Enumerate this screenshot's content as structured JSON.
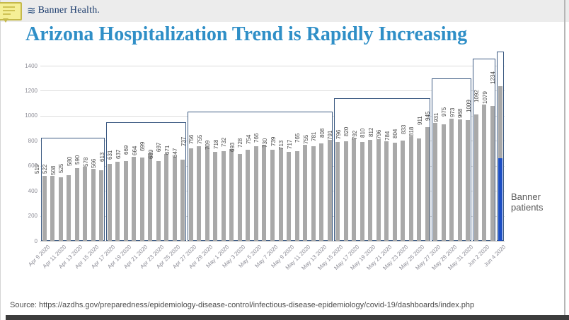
{
  "header": {
    "logo_text": "Banner Health.",
    "comment_icon": "sticky-note-comment-icon",
    "logo_swirl_icon": "banner-swirl-icon"
  },
  "title": "Arizona Hospitalization Trend is Rapidly Increasing",
  "annotation": {
    "line1": "Banner",
    "line2": "patients"
  },
  "source": "Source:  https://azdhs.gov/preparedness/epidemiology-disease-control/infectious-disease-epidemiology/covid-19/dashboards/index.php",
  "colors": {
    "bar": "#a9a9a9",
    "banner_patients_blue": "#1d4fc4",
    "step_box_border": "#3c5a82",
    "title_blue": "#2f8fc7",
    "logo_navy": "#1c3c6d",
    "gridline": "#dcdcdc",
    "tick_text": "#8c8c96",
    "header_band": "#ececec"
  },
  "chart_data": {
    "type": "bar",
    "title": "Arizona Hospitalization Trend is Rapidly Increasing",
    "xlabel": "",
    "ylabel": "",
    "ylim": [
      0,
      1400
    ],
    "yticks": [
      0,
      200,
      400,
      600,
      800,
      1000,
      1200,
      1400
    ],
    "grid": true,
    "xtick_every": 2,
    "x": [
      "Apr 9 2020",
      "Apr 10 2020",
      "Apr 11 2020",
      "Apr 12 2020",
      "Apr 13 2020",
      "Apr 14 2020",
      "Apr 15 2020",
      "Apr 16 2020",
      "Apr 17 2020",
      "Apr 18 2020",
      "Apr 19 2020",
      "Apr 20 2020",
      "Apr 21 2020",
      "Apr 22 2020",
      "Apr 23 2020",
      "Apr 24 2020",
      "Apr 25 2020",
      "Apr 26 2020",
      "Apr 27 2020",
      "Apr 28 2020",
      "Apr 29 2020",
      "Apr 30 2020",
      "May 1 2020",
      "May 2 2020",
      "May 3 2020",
      "May 4 2020",
      "May 5 2020",
      "May 6 2020",
      "May 7 2020",
      "May 8 2020",
      "May 9 2020",
      "May 10 2020",
      "May 11 2020",
      "May 12 2020",
      "May 13 2020",
      "May 14 2020",
      "May 15 2020",
      "May 16 2020",
      "May 17 2020",
      "May 18 2020",
      "May 19 2020",
      "May 20 2020",
      "May 21 2020",
      "May 22 2020",
      "May 23 2020",
      "May 24 2020",
      "May 25 2020",
      "May 26 2020",
      "May 27 2020",
      "May 28 2020",
      "May 29 2020",
      "May 30 2020",
      "May 31 2020",
      "Jun 1 2020",
      "Jun 2 2020",
      "Jun 3 2020",
      "Jun 4 2020"
    ],
    "values": [
      519,
      522,
      508,
      525,
      580,
      590,
      578,
      566,
      613,
      631,
      637,
      669,
      664,
      699,
      639,
      697,
      671,
      647,
      737,
      756,
      755,
      709,
      718,
      732,
      693,
      728,
      754,
      766,
      730,
      739,
      713,
      717,
      765,
      755,
      781,
      808,
      791,
      796,
      820,
      792,
      810,
      812,
      796,
      784,
      804,
      833,
      818,
      911,
      945,
      931,
      975,
      973,
      968,
      1009,
      1092,
      1079,
      1234
    ],
    "step_boxes": [
      {
        "start_index": 0,
        "end_index": 7,
        "top_value": 825
      },
      {
        "start_index": 8,
        "end_index": 17,
        "top_value": 950
      },
      {
        "start_index": 18,
        "end_index": 35,
        "top_value": 1035
      },
      {
        "start_index": 36,
        "end_index": 47,
        "top_value": 1140
      },
      {
        "start_index": 48,
        "end_index": 52,
        "top_value": 1300
      },
      {
        "start_index": 53,
        "end_index": 55,
        "top_value": 1455
      },
      {
        "start_index": 56,
        "end_index": 56,
        "top_value": 1515
      }
    ],
    "highlight": {
      "index": 56,
      "date": "Jun 4 2020",
      "total_value": 1234,
      "banner_patients_value": 660,
      "color": "#1d4fc4",
      "label": "Banner patients"
    },
    "legend_position": "right-annotation"
  }
}
